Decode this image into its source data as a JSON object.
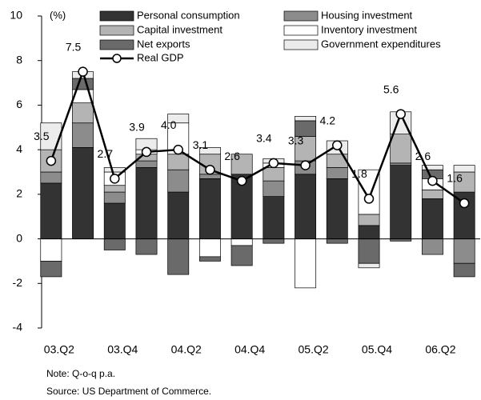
{
  "chart_data": {
    "type": "stacked_bar_line",
    "y_unit_label": "(%)",
    "categories": [
      "03.Q2",
      null,
      "03.Q4",
      null,
      "04.Q2",
      null,
      "04.Q4",
      null,
      "05.Q2",
      null,
      "05.Q4",
      null,
      "06.Q2",
      null
    ],
    "series": [
      {
        "name": "Personal consumption",
        "color": "#333333",
        "values": [
          2.5,
          4.1,
          1.6,
          3.2,
          2.1,
          2.7,
          2.9,
          1.9,
          2.9,
          2.7,
          0.6,
          3.3,
          1.8,
          2.1
        ]
      },
      {
        "name": "Housing investment",
        "color": "#8c8c8c",
        "values": [
          0.5,
          1.1,
          0.5,
          0.3,
          1.0,
          0.2,
          0,
          0.7,
          0.6,
          0.5,
          0,
          0.1,
          -0.7,
          -1.1
        ]
      },
      {
        "name": "Capital investment",
        "color": "#b4b4b4",
        "values": [
          1.0,
          0.9,
          0.3,
          0.3,
          0.7,
          0.9,
          0.9,
          0.6,
          1.1,
          0.6,
          0.5,
          1.3,
          0.4,
          0.9
        ]
      },
      {
        "name": "Inventory investment",
        "color": "#ffffff",
        "values": [
          -1.0,
          0.6,
          0.6,
          0.2,
          1.4,
          -0.8,
          -0.3,
          0.2,
          -2.2,
          0,
          2.0,
          0,
          0.5,
          0
        ]
      },
      {
        "name": "Net exports",
        "color": "#6a6a6a",
        "values": [
          -0.7,
          0.5,
          -0.5,
          -0.7,
          -1.6,
          -0.2,
          -0.9,
          -0.2,
          0.7,
          -0.2,
          -1.1,
          -0.1,
          0.4,
          -0.6
        ]
      },
      {
        "name": "Government expenditures",
        "color": "#ececec",
        "values": [
          1.2,
          0.3,
          0.2,
          0.5,
          0.4,
          0.3,
          0,
          0.2,
          0.2,
          0.6,
          -0.2,
          1.0,
          0.2,
          0.3
        ]
      }
    ],
    "line": {
      "name": "Real GDP",
      "color": "#000000",
      "values": [
        3.5,
        7.5,
        2.7,
        3.9,
        4.0,
        3.1,
        2.6,
        3.4,
        3.3,
        4.2,
        1.8,
        5.6,
        2.6,
        1.6
      ],
      "value_labels": [
        "3.5",
        "7.5",
        "2.7",
        "3.9",
        "4.0",
        "3.1",
        "2.6",
        "3.4",
        "3.3",
        "4.2",
        "1.8",
        "5.6",
        "2.6",
        "1.6"
      ]
    },
    "ylim": [
      -4,
      10
    ],
    "yticks": [
      -4,
      -2,
      0,
      2,
      4,
      6,
      8,
      10
    ],
    "grid": false,
    "notes": [
      "Note: Q-o-q p.a.",
      "Source: US Department of Commerce."
    ]
  }
}
